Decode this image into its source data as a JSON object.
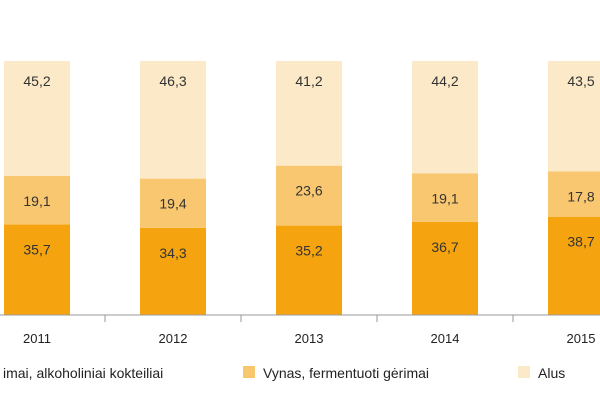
{
  "chart_data": {
    "type": "bar",
    "stacked": true,
    "percent": true,
    "categories": [
      "2011",
      "2012",
      "2013",
      "2014",
      "2015"
    ],
    "series": [
      {
        "name": "Spiritiniai gėrimai, alkoholiniai kokteiliai",
        "values": [
          35.7,
          34.3,
          35.2,
          36.7,
          38.7
        ],
        "color": "#F5A40F"
      },
      {
        "name": "Vynas, fermentuoti gėrimai",
        "values": [
          19.1,
          19.4,
          23.6,
          19.1,
          17.8
        ],
        "color": "#F9C770"
      },
      {
        "name": "Alus",
        "values": [
          45.2,
          46.3,
          41.2,
          44.2,
          43.5
        ],
        "color": "#FCE9C8"
      }
    ],
    "legend_labels": [
      "imai, alkoholiniai kokteiliai",
      "Vynas, fermentuoti gėrimai",
      "Alus"
    ],
    "ylim": [
      0,
      100
    ],
    "legend_position": "bottom",
    "grid": false
  }
}
